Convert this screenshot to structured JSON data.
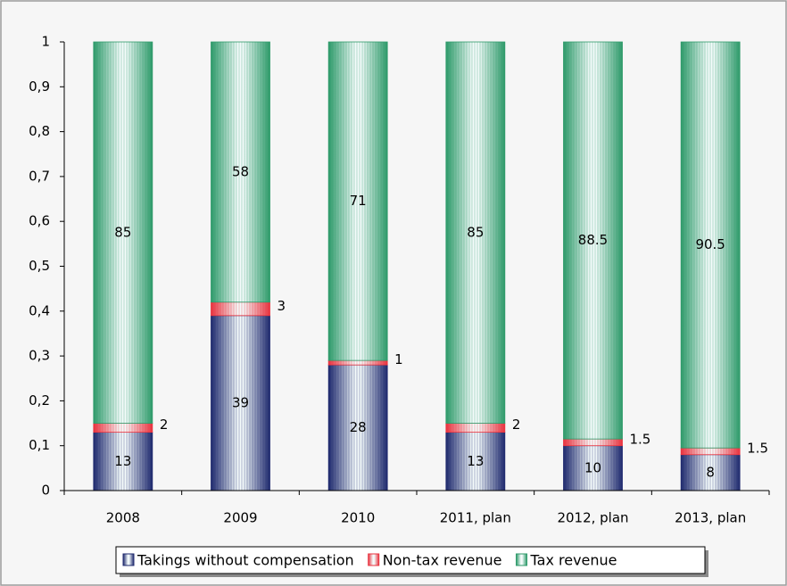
{
  "chart_data": {
    "type": "stacked_bar",
    "categories": [
      "2008",
      "2009",
      "2010",
      "2011, plan",
      "2012, plan",
      "2013, plan"
    ],
    "series": [
      {
        "name": "Takings without compensation",
        "color": "#1f2a6e",
        "values": [
          0.13,
          0.39,
          0.28,
          0.13,
          0.1,
          0.08
        ],
        "value_labels": [
          "13",
          "39",
          "28",
          "13",
          "10",
          "8"
        ]
      },
      {
        "name": "Non-tax revenue",
        "color": "#e8333f",
        "values": [
          0.02,
          0.03,
          0.01,
          0.02,
          0.015,
          0.015
        ],
        "value_labels": [
          "2",
          "3",
          "1",
          "2",
          "1.5",
          "1.5"
        ]
      },
      {
        "name": "Tax revenue",
        "color": "#2e9a6a",
        "values": [
          0.85,
          0.58,
          0.71,
          0.85,
          0.885,
          0.905
        ],
        "value_labels": [
          "85",
          "58",
          "71",
          "85",
          "88.5",
          "90.5"
        ]
      }
    ],
    "ylim": [
      0,
      1
    ],
    "yticks": [
      0,
      {
        "value": 0.1,
        "label": "0,1"
      },
      {
        "value": 0.2,
        "label": "0,2"
      },
      {
        "value": 0.3,
        "label": "0,3"
      },
      {
        "value": 0.4,
        "label": "0,4"
      },
      {
        "value": 0.5,
        "label": "0,5"
      },
      {
        "value": 0.6,
        "label": "0,6"
      },
      {
        "value": 0.7,
        "label": "0,7"
      },
      {
        "value": 0.8,
        "label": "0,8"
      },
      {
        "value": 0.9,
        "label": "0,9"
      },
      1
    ],
    "legend": "bottom"
  }
}
